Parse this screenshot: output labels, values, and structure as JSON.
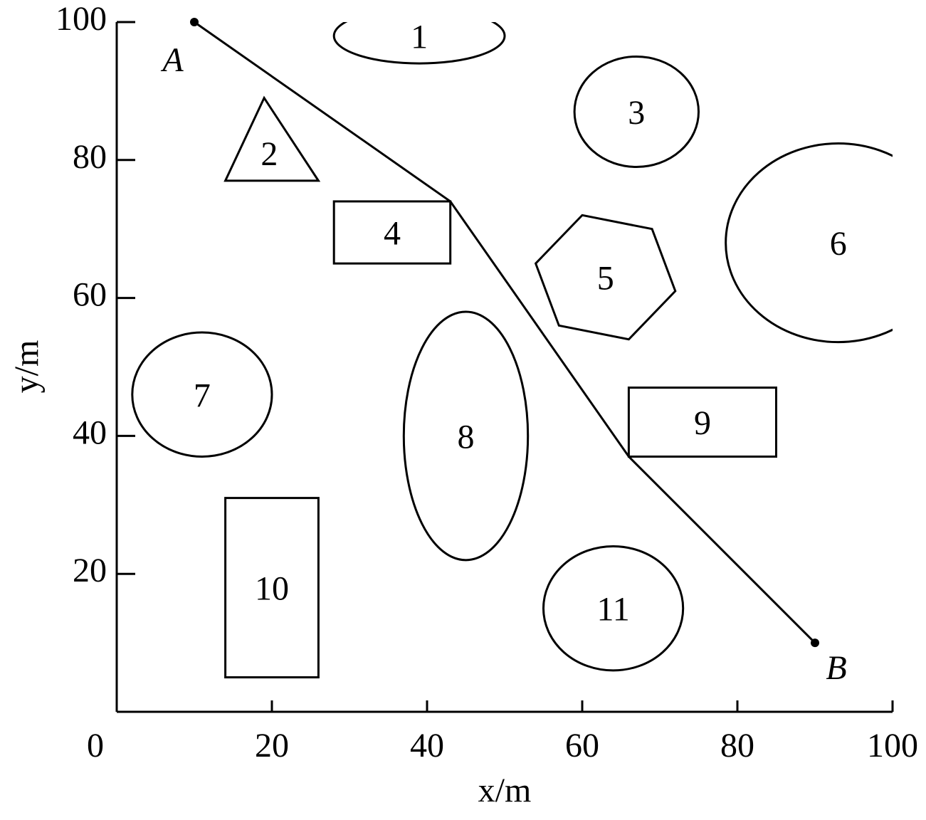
{
  "chart_data": {
    "type": "path-map",
    "xlabel": "x/m",
    "ylabel": "y/m",
    "xlim": [
      0,
      100
    ],
    "ylim": [
      0,
      100
    ],
    "xticks": [
      0,
      20,
      40,
      60,
      80,
      100
    ],
    "yticks": [
      20,
      40,
      60,
      80,
      100
    ],
    "path": {
      "x": [
        10,
        43,
        66,
        90
      ],
      "y": [
        100,
        74,
        37,
        10
      ],
      "start_label": "A",
      "end_label": "B",
      "color": "#000000"
    },
    "obstacles": [
      {
        "label": "1",
        "shape": "ellipse",
        "cx": 39,
        "cy": 98,
        "rx": 11,
        "ry": 4
      },
      {
        "label": "2",
        "shape": "polygon",
        "x": [
          19,
          14,
          26
        ],
        "y": [
          89,
          77,
          77
        ]
      },
      {
        "label": "3",
        "shape": "ellipse",
        "cx": 67,
        "cy": 87,
        "rx": 8,
        "ry": 8
      },
      {
        "label": "4",
        "shape": "rect",
        "x": [
          28,
          43
        ],
        "y": [
          65,
          74
        ]
      },
      {
        "label": "5",
        "shape": "polygon",
        "x": [
          60,
          69,
          72,
          66,
          57,
          54
        ],
        "y": [
          72,
          70,
          61,
          54,
          56,
          65
        ]
      },
      {
        "label": "6",
        "shape": "ellipse",
        "cx": 93,
        "cy": 68,
        "rx": 14.5,
        "ry": 14.4
      },
      {
        "label": "7",
        "shape": "ellipse",
        "cx": 11,
        "cy": 46,
        "rx": 9,
        "ry": 9
      },
      {
        "label": "8",
        "shape": "ellipse",
        "cx": 45,
        "cy": 40,
        "rx": 8,
        "ry": 18
      },
      {
        "label": "9",
        "shape": "rect",
        "x": [
          66,
          85
        ],
        "y": [
          37,
          47
        ]
      },
      {
        "label": "10",
        "shape": "rect",
        "x": [
          14,
          26
        ],
        "y": [
          5,
          31
        ]
      },
      {
        "label": "11",
        "shape": "ellipse",
        "cx": 64,
        "cy": 15,
        "rx": 9,
        "ry": 9
      }
    ]
  }
}
